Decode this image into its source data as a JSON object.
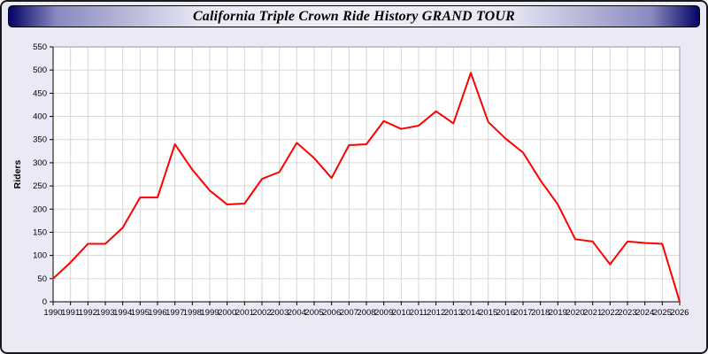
{
  "title": "California Triple Crown Ride History GRAND TOUR",
  "chart_data": {
    "type": "line",
    "title": "California Triple Crown Ride History GRAND TOUR",
    "xlabel": "",
    "ylabel": "Riders",
    "ylim": [
      0,
      550
    ],
    "y_tick_step": 50,
    "grid": true,
    "legend_position": "none",
    "line_color": "#ff0000",
    "plot_background": "#ffffff",
    "page_background": "#eaeaf6",
    "years": [
      1990,
      1991,
      1992,
      1993,
      1994,
      1995,
      1996,
      1997,
      1998,
      1999,
      2000,
      2001,
      2002,
      2003,
      2004,
      2005,
      2006,
      2007,
      2008,
      2009,
      2010,
      2011,
      2012,
      2013,
      2014,
      2015,
      2016,
      2017,
      2018,
      2019,
      2020,
      2021,
      2022,
      2023,
      2024,
      2025,
      2026
    ],
    "values": [
      50,
      85,
      125,
      125,
      160,
      225,
      225,
      340,
      285,
      240,
      210,
      212,
      265,
      280,
      343,
      310,
      267,
      338,
      340,
      390,
      373,
      380,
      411,
      385,
      494,
      388,
      352,
      322,
      262,
      210,
      135,
      130,
      81,
      130,
      127,
      125,
      0
    ]
  }
}
